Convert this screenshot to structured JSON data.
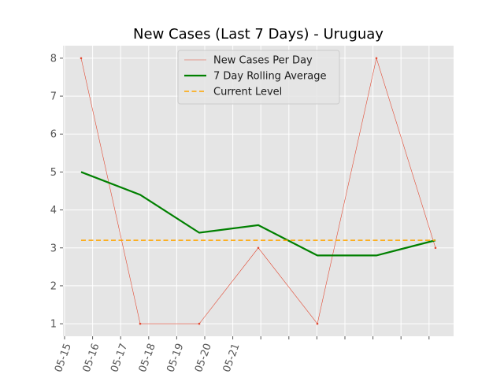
{
  "chart_data": {
    "type": "line",
    "title": "New Cases (Last 7 Days) - Uruguay",
    "xlabel": "",
    "ylabel": "",
    "x_tick_labels": [
      "05-15",
      "05-16",
      "05-17",
      "05-18",
      "05-19",
      "05-20",
      "05-21"
    ],
    "ylim": [
      0.67,
      8.33
    ],
    "y_ticks": [
      1,
      2,
      3,
      4,
      5,
      6,
      7,
      8
    ],
    "grid": true,
    "legend_position": "top-center",
    "series": [
      {
        "name": "New Cases Per Day",
        "color": "#e24a33",
        "style": "thin-line-dots",
        "values": [
          8,
          1,
          1,
          3,
          1,
          8,
          3
        ]
      },
      {
        "name": "7 Day Rolling Average",
        "color": "#008000",
        "style": "thick-line",
        "values": [
          5.0,
          4.4,
          3.4,
          3.6,
          2.8,
          2.8,
          3.2
        ]
      },
      {
        "name": "Current Level",
        "color": "#ffa500",
        "style": "dashed",
        "values": [
          3.2,
          3.2,
          3.2,
          3.2,
          3.2,
          3.2,
          3.2
        ]
      }
    ]
  }
}
